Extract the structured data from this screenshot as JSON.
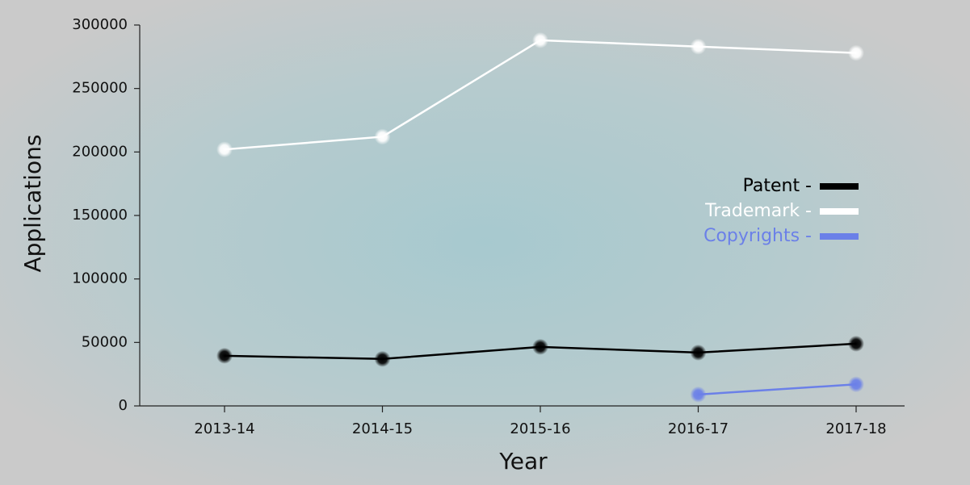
{
  "chart_data": {
    "type": "line",
    "x_label": "Year",
    "y_label": "Applications",
    "categories": [
      "2013-14",
      "2014-15",
      "2015-16",
      "2016-17",
      "2017-18"
    ],
    "series": [
      {
        "name": "Patent -",
        "color": "#000000",
        "values": [
          39500,
          37000,
          46500,
          42000,
          49000
        ]
      },
      {
        "name": "Trademark -",
        "color": "#ffffff",
        "values": [
          202000,
          212000,
          288000,
          283000,
          278000
        ]
      },
      {
        "name": "Copyrights -",
        "color": "#6b80e8",
        "values": [
          null,
          null,
          null,
          9000,
          17000
        ]
      }
    ],
    "ylim": [
      0,
      300000
    ],
    "yticks": [
      0,
      50000,
      100000,
      150000,
      200000,
      250000,
      300000
    ]
  }
}
